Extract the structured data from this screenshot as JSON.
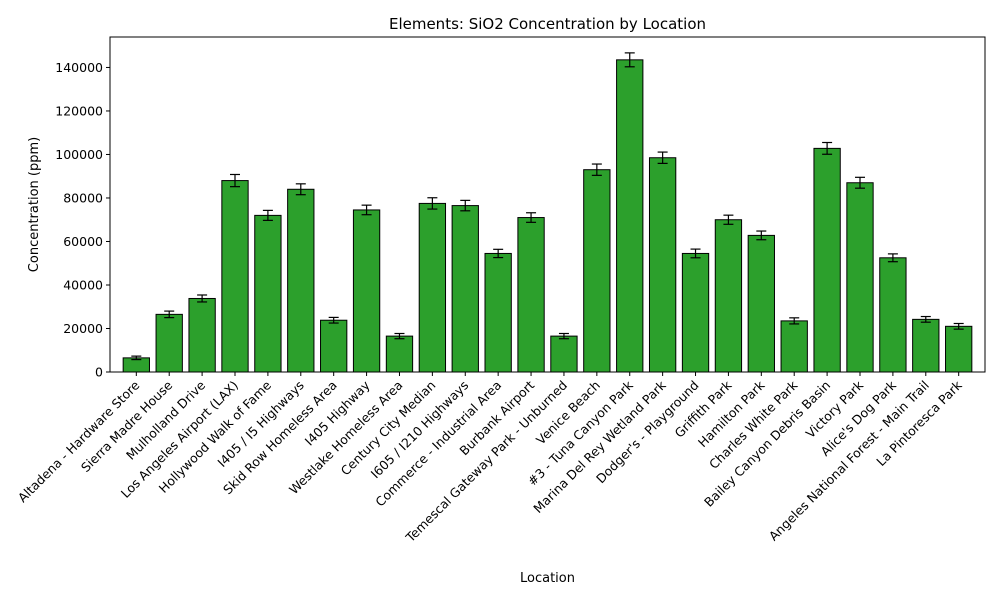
{
  "chart_data": {
    "type": "bar",
    "title": "Elements: SiO2 Concentration by Location",
    "xlabel": "Location",
    "ylabel": "Concentration (ppm)",
    "ylim": [
      0,
      154000
    ],
    "yticks": [
      0,
      20000,
      40000,
      60000,
      80000,
      100000,
      120000,
      140000
    ],
    "grid": false,
    "bar_color": "#2ca02c",
    "edge_color": "#000000",
    "categories": [
      "Altadena - Hardware Store",
      "Sierra Madre House",
      "Mulholland Drive",
      "Los Angeles Airport (LAX)",
      "Hollywood Walk of Fame",
      "I405 / I5 Highways",
      "Skid Row Homeless Area",
      "I405 Highway",
      "Westlake Homeless Area",
      "Century City Median",
      "I605 / I210 Highways",
      "Commerce - Industrial Area",
      "Burbank Airport",
      "Temescal Gateway Park - Unburned",
      "Venice Beach",
      "#3 - Tuna Canyon Park",
      "Marina Del Rey Wetland Park",
      "Dodger's - Playground",
      "Griffith Park",
      "Hamilton Park",
      "Charles White Park",
      "Bailey Canyon Debris Basin",
      "Victory Park",
      "Alice's Dog Park",
      "Angeles National Forest - Main Trail",
      "La Pintoresca Park"
    ],
    "values": [
      6500,
      26500,
      33800,
      88000,
      72000,
      84000,
      23800,
      74500,
      16500,
      77500,
      76500,
      54500,
      71000,
      16500,
      93000,
      143500,
      98500,
      54500,
      70000,
      62800,
      23500,
      102800,
      87000,
      52500,
      24200,
      21000
    ],
    "errors": [
      800,
      1500,
      1600,
      2800,
      2300,
      2500,
      1300,
      2200,
      1200,
      2600,
      2400,
      1900,
      2200,
      1200,
      2600,
      3200,
      2600,
      2000,
      2100,
      2000,
      1400,
      2700,
      2500,
      1800,
      1300,
      1300
    ]
  }
}
